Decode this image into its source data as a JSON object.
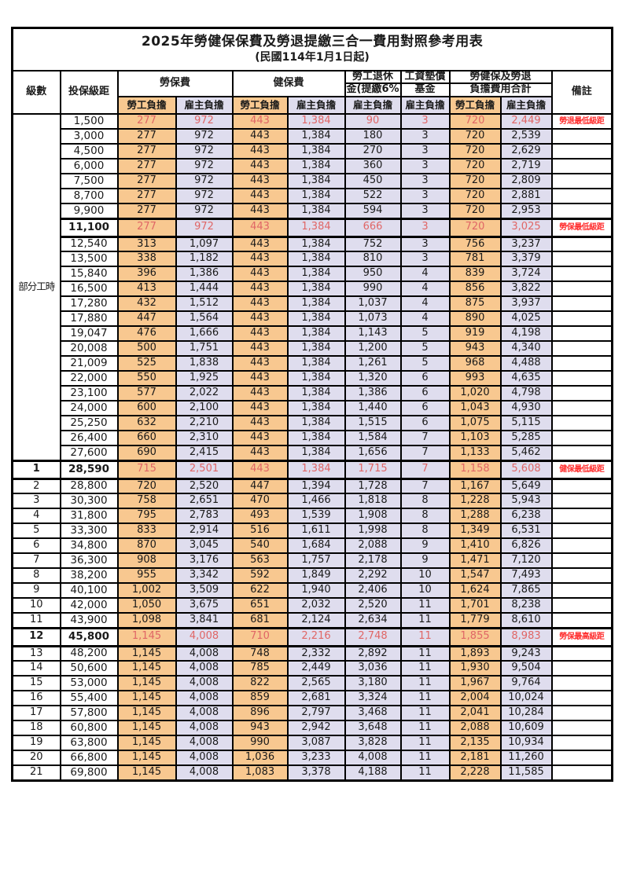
{
  "title": "2025年勞健保保費及勞退提繳三合一費用對照參考用表",
  "subtitle": "(民國114年1月1日起)",
  "colors": {
    "employee_bg": "#F8C890",
    "employer_bg": "#DFDDEE",
    "red_value": "#E06666",
    "remark_red": "#FF2D2D",
    "border": "#000000"
  },
  "header": {
    "level": "級數",
    "bracket": "投保級距",
    "labor_insurance": "勞保費",
    "health_insurance": "健保費",
    "pension_line1": "勞工退休",
    "pension_line2": "金(提繳6%)",
    "arrears_line1": "工資墊償",
    "arrears_line2": "基金",
    "total_line1": "勞健保及勞退",
    "total_line2": "負擔費用合計",
    "remark": "備註",
    "employee": "勞工負擔",
    "employer": "雇主負擔"
  },
  "part_time_label": "部分工時",
  "part_time_rowspan": 23,
  "rows": [
    {
      "level": "",
      "bracket": "1,500",
      "values": [
        "277",
        "972",
        "443",
        "1,384",
        "90",
        "3",
        "720",
        "2,449"
      ],
      "remark": "勞退最低級距",
      "red": true,
      "thick": false
    },
    {
      "level": "",
      "bracket": "3,000",
      "values": [
        "277",
        "972",
        "443",
        "1,384",
        "180",
        "3",
        "720",
        "2,539"
      ],
      "remark": "",
      "red": false,
      "thick": false
    },
    {
      "level": "",
      "bracket": "4,500",
      "values": [
        "277",
        "972",
        "443",
        "1,384",
        "270",
        "3",
        "720",
        "2,629"
      ],
      "remark": "",
      "red": false,
      "thick": false
    },
    {
      "level": "",
      "bracket": "6,000",
      "values": [
        "277",
        "972",
        "443",
        "1,384",
        "360",
        "3",
        "720",
        "2,719"
      ],
      "remark": "",
      "red": false,
      "thick": false
    },
    {
      "level": "",
      "bracket": "7,500",
      "values": [
        "277",
        "972",
        "443",
        "1,384",
        "450",
        "3",
        "720",
        "2,809"
      ],
      "remark": "",
      "red": false,
      "thick": false
    },
    {
      "level": "",
      "bracket": "8,700",
      "values": [
        "277",
        "972",
        "443",
        "1,384",
        "522",
        "3",
        "720",
        "2,881"
      ],
      "remark": "",
      "red": false,
      "thick": false
    },
    {
      "level": "",
      "bracket": "9,900",
      "values": [
        "277",
        "972",
        "443",
        "1,384",
        "594",
        "3",
        "720",
        "2,953"
      ],
      "remark": "",
      "red": false,
      "thick": false
    },
    {
      "level": "",
      "bracket": "11,100",
      "values": [
        "277",
        "972",
        "443",
        "1,384",
        "666",
        "3",
        "720",
        "3,025"
      ],
      "remark": "勞保最低級距",
      "red": true,
      "thick": true
    },
    {
      "level": "",
      "bracket": "12,540",
      "values": [
        "313",
        "1,097",
        "443",
        "1,384",
        "752",
        "3",
        "756",
        "3,237"
      ],
      "remark": "",
      "red": false,
      "thick": false
    },
    {
      "level": "",
      "bracket": "13,500",
      "values": [
        "338",
        "1,182",
        "443",
        "1,384",
        "810",
        "3",
        "781",
        "3,379"
      ],
      "remark": "",
      "red": false,
      "thick": false
    },
    {
      "level": "",
      "bracket": "15,840",
      "values": [
        "396",
        "1,386",
        "443",
        "1,384",
        "950",
        "4",
        "839",
        "3,724"
      ],
      "remark": "",
      "red": false,
      "thick": false
    },
    {
      "level": "",
      "bracket": "16,500",
      "values": [
        "413",
        "1,444",
        "443",
        "1,384",
        "990",
        "4",
        "856",
        "3,822"
      ],
      "remark": "",
      "red": false,
      "thick": false
    },
    {
      "level": "",
      "bracket": "17,280",
      "values": [
        "432",
        "1,512",
        "443",
        "1,384",
        "1,037",
        "4",
        "875",
        "3,937"
      ],
      "remark": "",
      "red": false,
      "thick": false
    },
    {
      "level": "",
      "bracket": "17,880",
      "values": [
        "447",
        "1,564",
        "443",
        "1,384",
        "1,073",
        "4",
        "890",
        "4,025"
      ],
      "remark": "",
      "red": false,
      "thick": false
    },
    {
      "level": "",
      "bracket": "19,047",
      "values": [
        "476",
        "1,666",
        "443",
        "1,384",
        "1,143",
        "5",
        "919",
        "4,198"
      ],
      "remark": "",
      "red": false,
      "thick": false
    },
    {
      "level": "",
      "bracket": "20,008",
      "values": [
        "500",
        "1,751",
        "443",
        "1,384",
        "1,200",
        "5",
        "943",
        "4,340"
      ],
      "remark": "",
      "red": false,
      "thick": false
    },
    {
      "level": "",
      "bracket": "21,009",
      "values": [
        "525",
        "1,838",
        "443",
        "1,384",
        "1,261",
        "5",
        "968",
        "4,488"
      ],
      "remark": "",
      "red": false,
      "thick": false
    },
    {
      "level": "",
      "bracket": "22,000",
      "values": [
        "550",
        "1,925",
        "443",
        "1,384",
        "1,320",
        "6",
        "993",
        "4,635"
      ],
      "remark": "",
      "red": false,
      "thick": false
    },
    {
      "level": "",
      "bracket": "23,100",
      "values": [
        "577",
        "2,022",
        "443",
        "1,384",
        "1,386",
        "6",
        "1,020",
        "4,798"
      ],
      "remark": "",
      "red": false,
      "thick": false
    },
    {
      "level": "",
      "bracket": "24,000",
      "values": [
        "600",
        "2,100",
        "443",
        "1,384",
        "1,440",
        "6",
        "1,043",
        "4,930"
      ],
      "remark": "",
      "red": false,
      "thick": false
    },
    {
      "level": "",
      "bracket": "25,250",
      "values": [
        "632",
        "2,210",
        "443",
        "1,384",
        "1,515",
        "6",
        "1,075",
        "5,115"
      ],
      "remark": "",
      "red": false,
      "thick": false
    },
    {
      "level": "",
      "bracket": "26,400",
      "values": [
        "660",
        "2,310",
        "443",
        "1,384",
        "1,584",
        "7",
        "1,103",
        "5,285"
      ],
      "remark": "",
      "red": false,
      "thick": false
    },
    {
      "level": "",
      "bracket": "27,600",
      "values": [
        "690",
        "2,415",
        "443",
        "1,384",
        "1,656",
        "7",
        "1,133",
        "5,462"
      ],
      "remark": "",
      "red": false,
      "thick": false
    },
    {
      "level": "1",
      "bracket": "28,590",
      "values": [
        "715",
        "2,501",
        "443",
        "1,384",
        "1,715",
        "7",
        "1,158",
        "5,608"
      ],
      "remark": "健保最低級距",
      "red": true,
      "thick": true
    },
    {
      "level": "2",
      "bracket": "28,800",
      "values": [
        "720",
        "2,520",
        "447",
        "1,394",
        "1,728",
        "7",
        "1,167",
        "5,649"
      ],
      "remark": "",
      "red": false,
      "thick": false
    },
    {
      "level": "3",
      "bracket": "30,300",
      "values": [
        "758",
        "2,651",
        "470",
        "1,466",
        "1,818",
        "8",
        "1,228",
        "5,943"
      ],
      "remark": "",
      "red": false,
      "thick": false
    },
    {
      "level": "4",
      "bracket": "31,800",
      "values": [
        "795",
        "2,783",
        "493",
        "1,539",
        "1,908",
        "8",
        "1,288",
        "6,238"
      ],
      "remark": "",
      "red": false,
      "thick": false
    },
    {
      "level": "5",
      "bracket": "33,300",
      "values": [
        "833",
        "2,914",
        "516",
        "1,611",
        "1,998",
        "8",
        "1,349",
        "6,531"
      ],
      "remark": "",
      "red": false,
      "thick": false
    },
    {
      "level": "6",
      "bracket": "34,800",
      "values": [
        "870",
        "3,045",
        "540",
        "1,684",
        "2,088",
        "9",
        "1,410",
        "6,826"
      ],
      "remark": "",
      "red": false,
      "thick": false
    },
    {
      "level": "7",
      "bracket": "36,300",
      "values": [
        "908",
        "3,176",
        "563",
        "1,757",
        "2,178",
        "9",
        "1,471",
        "7,120"
      ],
      "remark": "",
      "red": false,
      "thick": false
    },
    {
      "level": "8",
      "bracket": "38,200",
      "values": [
        "955",
        "3,342",
        "592",
        "1,849",
        "2,292",
        "10",
        "1,547",
        "7,493"
      ],
      "remark": "",
      "red": false,
      "thick": false
    },
    {
      "level": "9",
      "bracket": "40,100",
      "values": [
        "1,002",
        "3,509",
        "622",
        "1,940",
        "2,406",
        "10",
        "1,624",
        "7,865"
      ],
      "remark": "",
      "red": false,
      "thick": false
    },
    {
      "level": "10",
      "bracket": "42,000",
      "values": [
        "1,050",
        "3,675",
        "651",
        "2,032",
        "2,520",
        "11",
        "1,701",
        "8,238"
      ],
      "remark": "",
      "red": false,
      "thick": false
    },
    {
      "level": "11",
      "bracket": "43,900",
      "values": [
        "1,098",
        "3,841",
        "681",
        "2,124",
        "2,634",
        "11",
        "1,779",
        "8,610"
      ],
      "remark": "",
      "red": false,
      "thick": false
    },
    {
      "level": "12",
      "bracket": "45,800",
      "values": [
        "1,145",
        "4,008",
        "710",
        "2,216",
        "2,748",
        "11",
        "1,855",
        "8,983"
      ],
      "remark": "勞保最高級距",
      "red": true,
      "thick": true
    },
    {
      "level": "13",
      "bracket": "48,200",
      "values": [
        "1,145",
        "4,008",
        "748",
        "2,332",
        "2,892",
        "11",
        "1,893",
        "9,243"
      ],
      "remark": "",
      "red": false,
      "thick": false
    },
    {
      "level": "14",
      "bracket": "50,600",
      "values": [
        "1,145",
        "4,008",
        "785",
        "2,449",
        "3,036",
        "11",
        "1,930",
        "9,504"
      ],
      "remark": "",
      "red": false,
      "thick": false
    },
    {
      "level": "15",
      "bracket": "53,000",
      "values": [
        "1,145",
        "4,008",
        "822",
        "2,565",
        "3,180",
        "11",
        "1,967",
        "9,764"
      ],
      "remark": "",
      "red": false,
      "thick": false
    },
    {
      "level": "16",
      "bracket": "55,400",
      "values": [
        "1,145",
        "4,008",
        "859",
        "2,681",
        "3,324",
        "11",
        "2,004",
        "10,024"
      ],
      "remark": "",
      "red": false,
      "thick": false
    },
    {
      "level": "17",
      "bracket": "57,800",
      "values": [
        "1,145",
        "4,008",
        "896",
        "2,797",
        "3,468",
        "11",
        "2,041",
        "10,284"
      ],
      "remark": "",
      "red": false,
      "thick": false
    },
    {
      "level": "18",
      "bracket": "60,800",
      "values": [
        "1,145",
        "4,008",
        "943",
        "2,942",
        "3,648",
        "11",
        "2,088",
        "10,609"
      ],
      "remark": "",
      "red": false,
      "thick": false
    },
    {
      "level": "19",
      "bracket": "63,800",
      "values": [
        "1,145",
        "4,008",
        "990",
        "3,087",
        "3,828",
        "11",
        "2,135",
        "10,934"
      ],
      "remark": "",
      "red": false,
      "thick": false
    },
    {
      "level": "20",
      "bracket": "66,800",
      "values": [
        "1,145",
        "4,008",
        "1,036",
        "3,233",
        "4,008",
        "11",
        "2,181",
        "11,260"
      ],
      "remark": "",
      "red": false,
      "thick": false
    },
    {
      "level": "21",
      "bracket": "69,800",
      "values": [
        "1,145",
        "4,008",
        "1,083",
        "3,378",
        "4,188",
        "11",
        "2,228",
        "11,585"
      ],
      "remark": "",
      "red": false,
      "thick": false
    }
  ]
}
